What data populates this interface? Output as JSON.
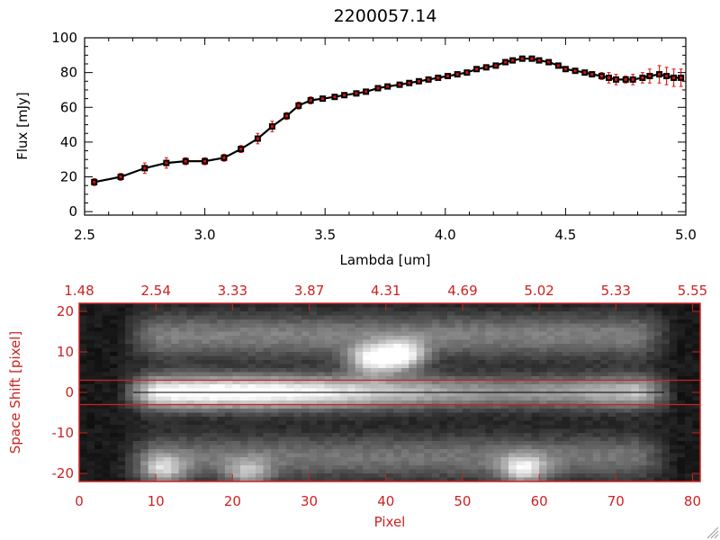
{
  "colors": {
    "axis_black": "#000000",
    "accent_red": "#cc2222",
    "errorbar_red": "#dd1111",
    "background": "#ffffff"
  },
  "chart_data": [
    {
      "type": "line",
      "title": "2200057.14",
      "xlabel": "Lambda [um]",
      "ylabel": "Flux [mJy]",
      "xlim": [
        2.5,
        5.0
      ],
      "ylim": [
        -2,
        100
      ],
      "xticks": [
        "2.5",
        "3.0",
        "3.5",
        "4.0",
        "4.5",
        "5.0"
      ],
      "xtick_values": [
        2.5,
        3.0,
        3.5,
        4.0,
        4.5,
        5.0
      ],
      "yticks": [
        "0",
        "20",
        "40",
        "60",
        "80",
        "100"
      ],
      "ytick_values": [
        0,
        20,
        40,
        60,
        80,
        100
      ],
      "x": [
        2.54,
        2.65,
        2.75,
        2.84,
        2.92,
        3.0,
        3.08,
        3.15,
        3.22,
        3.28,
        3.34,
        3.39,
        3.44,
        3.49,
        3.54,
        3.58,
        3.63,
        3.67,
        3.72,
        3.76,
        3.81,
        3.85,
        3.89,
        3.93,
        3.97,
        4.01,
        4.05,
        4.09,
        4.13,
        4.17,
        4.21,
        4.25,
        4.28,
        4.32,
        4.36,
        4.39,
        4.43,
        4.47,
        4.5,
        4.54,
        4.58,
        4.61,
        4.65,
        4.68,
        4.71,
        4.75,
        4.78,
        4.82,
        4.85,
        4.89,
        4.92,
        4.95,
        4.98
      ],
      "y": [
        17,
        20,
        25,
        28,
        29,
        29,
        31,
        36,
        42,
        49,
        55,
        61,
        64,
        65,
        66,
        67,
        68,
        69,
        71,
        72,
        73,
        74,
        75,
        76,
        77,
        78,
        79,
        80,
        82,
        83,
        84,
        86,
        87,
        88,
        88,
        87,
        86,
        84,
        82,
        81,
        80,
        79,
        78,
        77,
        76,
        76,
        76,
        77,
        78,
        79,
        78,
        77,
        77
      ],
      "yerr": [
        2,
        2,
        3,
        3,
        2,
        2,
        2,
        2,
        3,
        3,
        2,
        2,
        2,
        1,
        1,
        1,
        1,
        1,
        1,
        1,
        1,
        1,
        1,
        1,
        1,
        1,
        1,
        1,
        1,
        1,
        1,
        1,
        1,
        1,
        1,
        1,
        1,
        1,
        1,
        1,
        1,
        1,
        2,
        3,
        3,
        2,
        3,
        3,
        4,
        5,
        5,
        5,
        5
      ]
    },
    {
      "type": "heatmap",
      "xlabel": "Pixel",
      "ylabel": "Space Shift [pixel]",
      "xlim": [
        0,
        81
      ],
      "ylim": [
        -22,
        22
      ],
      "xticks": [
        "0",
        "10",
        "20",
        "30",
        "40",
        "50",
        "60",
        "70",
        "80"
      ],
      "xtick_values": [
        0,
        10,
        20,
        30,
        40,
        50,
        60,
        70,
        80
      ],
      "yticks": [
        "-20",
        "-10",
        "0",
        "10",
        "20"
      ],
      "ytick_values": [
        -20,
        -10,
        0,
        10,
        20
      ],
      "top_xticks": [
        "1.48",
        "2.54",
        "3.33",
        "3.87",
        "4.31",
        "4.69",
        "5.02",
        "5.33",
        "5.55"
      ],
      "top_xtick_values": [
        0,
        10,
        20,
        30,
        40,
        50,
        60,
        70,
        80
      ],
      "extraction_window": [
        -3,
        3
      ],
      "center_line": 0,
      "bands": [
        {
          "center": 0,
          "intensity": 0.98
        },
        {
          "center": 14,
          "intensity": 0.4
        },
        {
          "center": -16,
          "intensity": 0.36
        }
      ],
      "blobs": [
        {
          "x": 38,
          "y": 8,
          "intensity": 0.72
        },
        {
          "x": 42,
          "y": 9,
          "intensity": 0.82
        },
        {
          "x": 58,
          "y": -19,
          "intensity": 0.62
        },
        {
          "x": 22,
          "y": -20,
          "intensity": 0.45
        },
        {
          "x": 11,
          "y": -19,
          "intensity": 0.5
        }
      ]
    }
  ]
}
